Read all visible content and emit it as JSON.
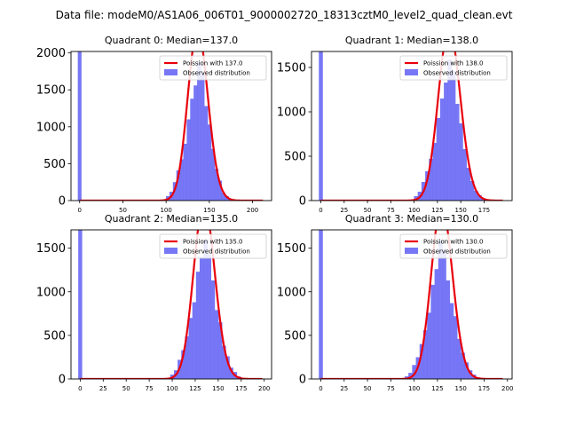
{
  "suptitle": "Data file: modeM0/AS1A06_006T01_9000002720_18313cztM0_level2_quad_clean.evt",
  "colors": {
    "bars": "#7070f5",
    "curve": "#e8000b",
    "axes": "#000000",
    "background": "#ffffff"
  },
  "legend_labels": {
    "observed": "Observed distribution"
  },
  "chart_data": [
    {
      "type": "bar",
      "title": "Quadrant 0: Median=137.0",
      "median": 137.0,
      "poisson_label": "Poission with 137.0",
      "xlim": [
        -10,
        222
      ],
      "ylim": [
        0,
        2020
      ],
      "xticks": [
        0,
        50,
        100,
        150,
        200
      ],
      "yticks": [
        0,
        500,
        1000,
        1500,
        2000
      ],
      "bin_width": 4.3,
      "spike": {
        "x": 0,
        "value": 2020
      },
      "bins": [
        [
          98,
          10
        ],
        [
          102,
          60
        ],
        [
          106,
          120
        ],
        [
          110,
          250
        ],
        [
          114,
          410
        ],
        [
          118,
          560
        ],
        [
          122,
          770
        ],
        [
          126,
          1100
        ],
        [
          130,
          1380
        ],
        [
          134,
          1560
        ],
        [
          138,
          1870
        ],
        [
          142,
          1730
        ],
        [
          146,
          1280
        ],
        [
          150,
          1030
        ],
        [
          154,
          700
        ],
        [
          158,
          430
        ],
        [
          162,
          270
        ],
        [
          166,
          110
        ],
        [
          170,
          60
        ],
        [
          174,
          25
        ],
        [
          178,
          10
        ]
      ],
      "legend_position": "top-right"
    },
    {
      "type": "bar",
      "title": "Quadrant 1: Median=138.0",
      "median": 138.0,
      "poisson_label": "Poission with 138.0",
      "xlim": [
        -10,
        205
      ],
      "ylim": [
        0,
        1680
      ],
      "xticks": [
        0,
        25,
        50,
        75,
        100,
        125,
        150,
        175
      ],
      "yticks": [
        0,
        500,
        1000,
        1500
      ],
      "bin_width": 4.3,
      "spike": {
        "x": 0,
        "value": 1680
      },
      "bins": [
        [
          98,
          10
        ],
        [
          102,
          50
        ],
        [
          106,
          100
        ],
        [
          110,
          210
        ],
        [
          114,
          330
        ],
        [
          118,
          470
        ],
        [
          122,
          650
        ],
        [
          126,
          930
        ],
        [
          130,
          1150
        ],
        [
          134,
          1330
        ],
        [
          138,
          1590
        ],
        [
          142,
          1460
        ],
        [
          146,
          1090
        ],
        [
          150,
          870
        ],
        [
          154,
          580
        ],
        [
          158,
          370
        ],
        [
          162,
          220
        ],
        [
          166,
          110
        ],
        [
          170,
          60
        ],
        [
          174,
          25
        ],
        [
          178,
          10
        ]
      ],
      "legend_position": "top-right"
    },
    {
      "type": "bar",
      "title": "Quadrant 2: Median=135.0",
      "median": 135.0,
      "poisson_label": "Poission with 135.0",
      "xlim": [
        -10,
        208
      ],
      "ylim": [
        0,
        1710
      ],
      "xticks": [
        0,
        25,
        50,
        75,
        100,
        125,
        150,
        175,
        200
      ],
      "yticks": [
        0,
        500,
        1000,
        1500
      ],
      "bin_width": 4.3,
      "spike": {
        "x": 0,
        "value": 1710
      },
      "bins": [
        [
          96,
          10
        ],
        [
          100,
          50
        ],
        [
          104,
          100
        ],
        [
          108,
          220
        ],
        [
          112,
          330
        ],
        [
          116,
          490
        ],
        [
          120,
          700
        ],
        [
          124,
          880
        ],
        [
          128,
          1230
        ],
        [
          132,
          1400
        ],
        [
          136,
          1600
        ],
        [
          140,
          1430
        ],
        [
          144,
          1130
        ],
        [
          148,
          790
        ],
        [
          152,
          650
        ],
        [
          156,
          380
        ],
        [
          160,
          260
        ],
        [
          164,
          130
        ],
        [
          168,
          80
        ],
        [
          172,
          30
        ],
        [
          176,
          10
        ]
      ],
      "legend_position": "top-right"
    },
    {
      "type": "bar",
      "title": "Quadrant 3: Median=130.0",
      "median": 130.0,
      "poisson_label": "Poission with 130.0",
      "xlim": [
        -10,
        205
      ],
      "ylim": [
        0,
        1710
      ],
      "xticks": [
        0,
        25,
        50,
        75,
        100,
        125,
        150,
        175,
        200
      ],
      "yticks": [
        0,
        500,
        1000,
        1500
      ],
      "bin_width": 4.3,
      "spike": {
        "x": 0,
        "value": 1710
      },
      "bins": [
        [
          88,
          10
        ],
        [
          92,
          30
        ],
        [
          96,
          70
        ],
        [
          100,
          160
        ],
        [
          104,
          250
        ],
        [
          108,
          400
        ],
        [
          112,
          560
        ],
        [
          116,
          760
        ],
        [
          120,
          1080
        ],
        [
          124,
          1260
        ],
        [
          128,
          1580
        ],
        [
          132,
          1490
        ],
        [
          136,
          1130
        ],
        [
          140,
          870
        ],
        [
          144,
          720
        ],
        [
          148,
          460
        ],
        [
          152,
          300
        ],
        [
          156,
          190
        ],
        [
          160,
          100
        ],
        [
          164,
          50
        ],
        [
          168,
          20
        ],
        [
          172,
          10
        ]
      ],
      "legend_position": "top-right"
    }
  ]
}
